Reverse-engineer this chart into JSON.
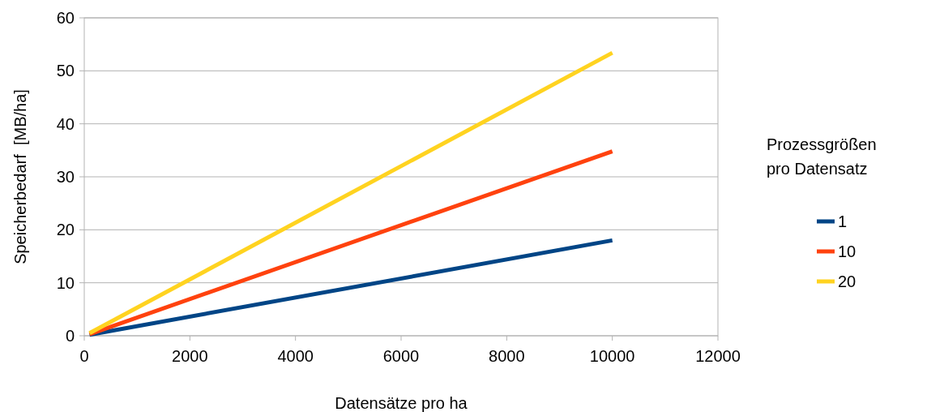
{
  "chart_data": {
    "type": "line",
    "xlabel": "Datensätze pro ha",
    "ylabel": "Speicherbedarf  [MB/ha]",
    "legend_title": "Prozessgrößen pro Datensatz",
    "x": [
      100,
      10000
    ],
    "series": [
      {
        "name": "1",
        "color": "#004586",
        "values": [
          0.2,
          18
        ]
      },
      {
        "name": "10",
        "color": "#ff420e",
        "values": [
          0.3,
          34.8
        ]
      },
      {
        "name": "20",
        "color": "#ffd320",
        "values": [
          0.5,
          53.4
        ]
      }
    ],
    "xlim": [
      0,
      12000
    ],
    "xticks": [
      0,
      2000,
      4000,
      6000,
      8000,
      10000,
      12000
    ],
    "ylim": [
      0,
      60
    ],
    "yticks": [
      0,
      10,
      20,
      30,
      40,
      50,
      60
    ],
    "grid": "y",
    "legend": "right",
    "marker": "none",
    "line_style": "solid"
  }
}
